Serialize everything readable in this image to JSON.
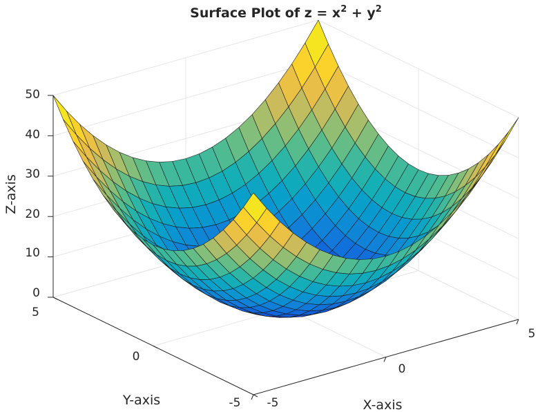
{
  "chart_data": {
    "type": "surface",
    "title": "Surface Plot of z = x² + y²",
    "title_parts": {
      "text1": "Surface Plot of z = x",
      "exp1": "2",
      "text2": " + y",
      "exp2": "2"
    },
    "equation": "z = x^2 + y^2",
    "xlabel": "X-axis",
    "ylabel": "Y-axis",
    "zlabel": "Z-axis",
    "xlim": [
      -5,
      5
    ],
    "ylim": [
      -5,
      5
    ],
    "zlim": [
      0,
      50
    ],
    "x_ticks": [
      "-5",
      "0",
      "5"
    ],
    "y_ticks": [
      "-5",
      "0",
      "5"
    ],
    "z_ticks": [
      "0",
      "10",
      "20",
      "30",
      "40",
      "50"
    ],
    "grid": "on",
    "x_grid": [
      -5,
      -4.5,
      -4,
      -3.5,
      -3,
      -2.5,
      -2,
      -1.5,
      -1,
      -0.5,
      0,
      0.5,
      1,
      1.5,
      2,
      2.5,
      3,
      3.5,
      4,
      4.5,
      5
    ],
    "y_grid": [
      -5,
      -4.5,
      -4,
      -3.5,
      -3,
      -2.5,
      -2,
      -1.5,
      -1,
      -0.5,
      0,
      0.5,
      1,
      1.5,
      2,
      2.5,
      3,
      3.5,
      4,
      4.5,
      5
    ],
    "colormap": "parula"
  }
}
